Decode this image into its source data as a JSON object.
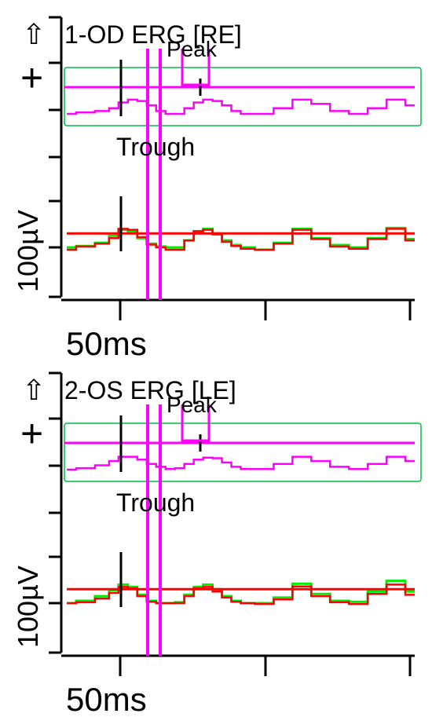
{
  "chart_data": [
    {
      "type": "line",
      "title": "1-OD ERG [RE]",
      "up_arrow_symbol": "⇧",
      "plus_symbol": "+",
      "peak_label": "Peak",
      "trough_label": "Trough",
      "y_scale_label": "100µV",
      "x_scale_label": "50ms",
      "colors": {
        "title": "#000000",
        "zoom": "#ff00ff",
        "green": "#00ee00",
        "red": "#ff0000",
        "box": "#00bb44"
      },
      "ylim": [
        -100,
        250
      ],
      "xlim": [
        -35,
        150
      ],
      "zoom_trace": {
        "baseline_y": 185,
        "baseline_x": [
          -35,
          150
        ],
        "points": [
          [
            -35,
            150
          ],
          [
            -25,
            155
          ],
          [
            -15,
            160
          ],
          [
            -10,
            170
          ],
          [
            -5,
            190
          ],
          [
            0,
            200
          ],
          [
            5,
            195
          ],
          [
            10,
            180
          ],
          [
            15,
            160
          ],
          [
            20,
            150
          ],
          [
            25,
            150
          ],
          [
            30,
            170
          ],
          [
            35,
            190
          ],
          [
            40,
            200
          ],
          [
            45,
            195
          ],
          [
            50,
            180
          ],
          [
            55,
            160
          ],
          [
            60,
            150
          ],
          [
            70,
            150
          ],
          [
            80,
            170
          ],
          [
            90,
            200
          ],
          [
            100,
            185
          ],
          [
            110,
            160
          ],
          [
            120,
            150
          ],
          [
            130,
            170
          ],
          [
            140,
            200
          ],
          [
            150,
            180
          ]
        ]
      },
      "green_trace": [
        [
          -35,
          0
        ],
        [
          -25,
          3
        ],
        [
          -15,
          10
        ],
        [
          -10,
          25
        ],
        [
          -5,
          38
        ],
        [
          0,
          35
        ],
        [
          5,
          20
        ],
        [
          10,
          8
        ],
        [
          15,
          2
        ],
        [
          20,
          0
        ],
        [
          25,
          0
        ],
        [
          30,
          15
        ],
        [
          35,
          35
        ],
        [
          40,
          40
        ],
        [
          45,
          30
        ],
        [
          50,
          15
        ],
        [
          55,
          5
        ],
        [
          60,
          0
        ],
        [
          70,
          -5
        ],
        [
          80,
          10
        ],
        [
          90,
          40
        ],
        [
          100,
          20
        ],
        [
          110,
          5
        ],
        [
          120,
          0
        ],
        [
          130,
          20
        ],
        [
          140,
          42
        ],
        [
          150,
          18
        ]
      ],
      "red_trace": [
        [
          -35,
          -5
        ],
        [
          -25,
          2
        ],
        [
          -15,
          8
        ],
        [
          -10,
          20
        ],
        [
          -5,
          40
        ],
        [
          0,
          38
        ],
        [
          5,
          22
        ],
        [
          10,
          6
        ],
        [
          15,
          0
        ],
        [
          20,
          -5
        ],
        [
          25,
          -5
        ],
        [
          30,
          15
        ],
        [
          35,
          35
        ],
        [
          40,
          38
        ],
        [
          45,
          28
        ],
        [
          50,
          12
        ],
        [
          55,
          3
        ],
        [
          60,
          -3
        ],
        [
          70,
          -5
        ],
        [
          80,
          8
        ],
        [
          90,
          38
        ],
        [
          100,
          18
        ],
        [
          110,
          2
        ],
        [
          120,
          -3
        ],
        [
          130,
          18
        ],
        [
          140,
          40
        ],
        [
          150,
          15
        ]
      ],
      "red_baseline_y": 30,
      "markers_ms": [
        0,
        45
      ],
      "cursor_ms": [
        18,
        26
      ]
    },
    {
      "type": "line",
      "title": "2-OS ERG [LE]",
      "up_arrow_symbol": "⇧",
      "plus_symbol": "+",
      "peak_label": "Peak",
      "trough_label": "Trough",
      "y_scale_label": "100µV",
      "x_scale_label": "50ms",
      "colors": {
        "title": "#000000",
        "zoom": "#ff00ff",
        "green": "#00ee00",
        "red": "#ff0000",
        "box": "#00bb44"
      },
      "ylim": [
        -100,
        250
      ],
      "xlim": [
        -35,
        150
      ],
      "zoom_trace": {
        "baseline_y": 185,
        "baseline_x": [
          -35,
          150
        ],
        "points": [
          [
            -35,
            150
          ],
          [
            -25,
            155
          ],
          [
            -15,
            165
          ],
          [
            -10,
            180
          ],
          [
            -5,
            195
          ],
          [
            0,
            195
          ],
          [
            5,
            185
          ],
          [
            10,
            170
          ],
          [
            15,
            160
          ],
          [
            20,
            152
          ],
          [
            25,
            155
          ],
          [
            30,
            170
          ],
          [
            35,
            185
          ],
          [
            40,
            192
          ],
          [
            45,
            190
          ],
          [
            50,
            175
          ],
          [
            55,
            160
          ],
          [
            60,
            152
          ],
          [
            70,
            152
          ],
          [
            80,
            170
          ],
          [
            90,
            195
          ],
          [
            100,
            180
          ],
          [
            110,
            160
          ],
          [
            120,
            152
          ],
          [
            130,
            170
          ],
          [
            140,
            195
          ],
          [
            150,
            180
          ]
        ]
      },
      "green_trace": [
        [
          -35,
          0
        ],
        [
          -25,
          5
        ],
        [
          -15,
          15
        ],
        [
          -10,
          28
        ],
        [
          -5,
          40
        ],
        [
          0,
          35
        ],
        [
          5,
          18
        ],
        [
          10,
          5
        ],
        [
          15,
          0
        ],
        [
          20,
          0
        ],
        [
          25,
          2
        ],
        [
          30,
          18
        ],
        [
          35,
          35
        ],
        [
          40,
          40
        ],
        [
          45,
          30
        ],
        [
          50,
          15
        ],
        [
          55,
          5
        ],
        [
          60,
          0
        ],
        [
          70,
          0
        ],
        [
          80,
          12
        ],
        [
          90,
          42
        ],
        [
          100,
          20
        ],
        [
          110,
          5
        ],
        [
          120,
          3
        ],
        [
          130,
          25
        ],
        [
          140,
          48
        ],
        [
          150,
          25
        ]
      ],
      "red_trace": [
        [
          -35,
          0
        ],
        [
          -25,
          2
        ],
        [
          -15,
          10
        ],
        [
          -10,
          22
        ],
        [
          -5,
          35
        ],
        [
          0,
          32
        ],
        [
          5,
          15
        ],
        [
          10,
          3
        ],
        [
          15,
          0
        ],
        [
          20,
          0
        ],
        [
          25,
          0
        ],
        [
          30,
          15
        ],
        [
          35,
          32
        ],
        [
          40,
          35
        ],
        [
          45,
          25
        ],
        [
          50,
          12
        ],
        [
          55,
          3
        ],
        [
          60,
          0
        ],
        [
          70,
          -2
        ],
        [
          80,
          8
        ],
        [
          90,
          36
        ],
        [
          100,
          15
        ],
        [
          110,
          2
        ],
        [
          120,
          -2
        ],
        [
          130,
          20
        ],
        [
          140,
          40
        ],
        [
          150,
          18
        ]
      ],
      "red_baseline_y": 30,
      "markers_ms": [
        0,
        45
      ],
      "cursor_ms": [
        18,
        26
      ]
    }
  ]
}
